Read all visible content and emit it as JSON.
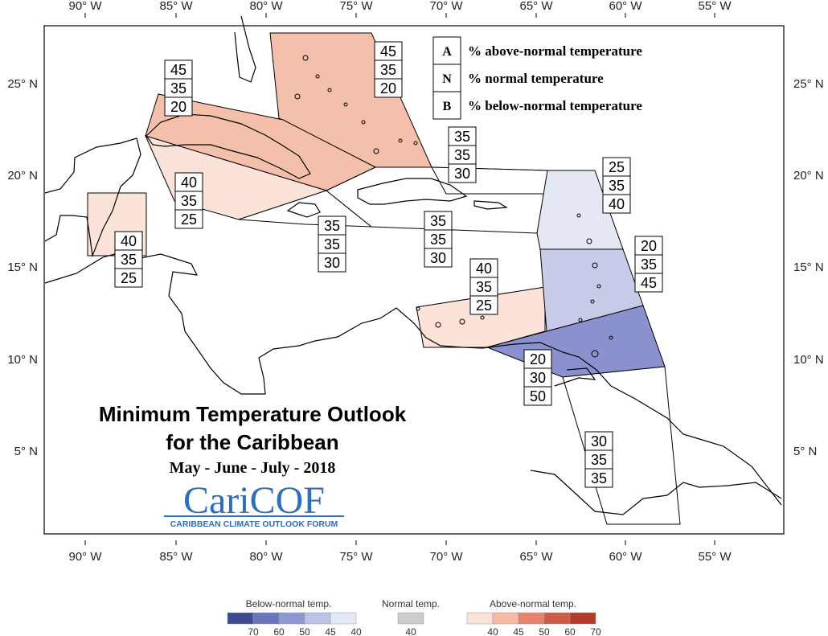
{
  "title": {
    "line1": "Minimum Temperature Outlook",
    "line2": "for the Caribbean",
    "period": "May - June - July - 2018"
  },
  "logo": {
    "text": "CariCOF",
    "subtitle": "CARIBBEAN CLIMATE OUTLOOK FORUM"
  },
  "legend_key": [
    {
      "letter": "A",
      "text": "% above-normal temperature"
    },
    {
      "letter": "N",
      "text": "% normal temperature"
    },
    {
      "letter": "B",
      "text": "% below-normal temperature"
    }
  ],
  "axes": {
    "x_ticks": [
      "90° W",
      "85° W",
      "80° W",
      "75° W",
      "70° W",
      "65° W",
      "60° W",
      "55° W"
    ],
    "y_ticks": [
      "25° N",
      "20° N",
      "15° N",
      "10° N",
      "5° N"
    ]
  },
  "regions": [
    {
      "id": "bahamas",
      "A": "45",
      "N": "35",
      "B": "20",
      "fill": "#f4c0ab"
    },
    {
      "id": "cuba",
      "A": "45",
      "N": "35",
      "B": "20",
      "fill": "#f4c0ab"
    },
    {
      "id": "jamaica-caymans",
      "A": "40",
      "N": "35",
      "B": "25",
      "fill": "#fbe3da"
    },
    {
      "id": "belize",
      "A": "40",
      "N": "35",
      "B": "25",
      "fill": "#fbe3da"
    },
    {
      "id": "jamaica-sea",
      "A": "35",
      "N": "35",
      "B": "30",
      "fill": "#ffffff"
    },
    {
      "id": "hispaniola",
      "A": "35",
      "N": "35",
      "B": "30",
      "fill": "#ffffff"
    },
    {
      "id": "turks-caicos",
      "A": "35",
      "N": "35",
      "B": "30",
      "fill": "#ffffff"
    },
    {
      "id": "abc-islands",
      "A": "40",
      "N": "35",
      "B": "25",
      "fill": "#fbe3da"
    },
    {
      "id": "leeward",
      "A": "25",
      "N": "35",
      "B": "40",
      "fill": "#e4e8f5"
    },
    {
      "id": "windward",
      "A": "20",
      "N": "35",
      "B": "45",
      "fill": "#c8cbe8"
    },
    {
      "id": "trinidad",
      "A": "20",
      "N": "30",
      "B": "50",
      "fill": "#8b91cf"
    },
    {
      "id": "guianas",
      "A": "30",
      "N": "35",
      "B": "35",
      "fill": "#ffffff"
    }
  ],
  "colorbar": {
    "below": {
      "title": "Below-normal temp.",
      "ticks": [
        "70",
        "60",
        "50",
        "45",
        "40"
      ],
      "colors": [
        "#3b4a92",
        "#6a74bd",
        "#8f98d3",
        "#bcc3e6",
        "#e3e7f6"
      ]
    },
    "normal": {
      "title": "Normal temp.",
      "ticks": [
        "40"
      ],
      "colors": [
        "#cccccc"
      ]
    },
    "above": {
      "title": "Above-normal temp.",
      "ticks": [
        "40",
        "45",
        "50",
        "60",
        "70"
      ],
      "colors": [
        "#fbe2d8",
        "#f4baa4",
        "#e8826c",
        "#d05b45",
        "#b23a29"
      ]
    }
  }
}
